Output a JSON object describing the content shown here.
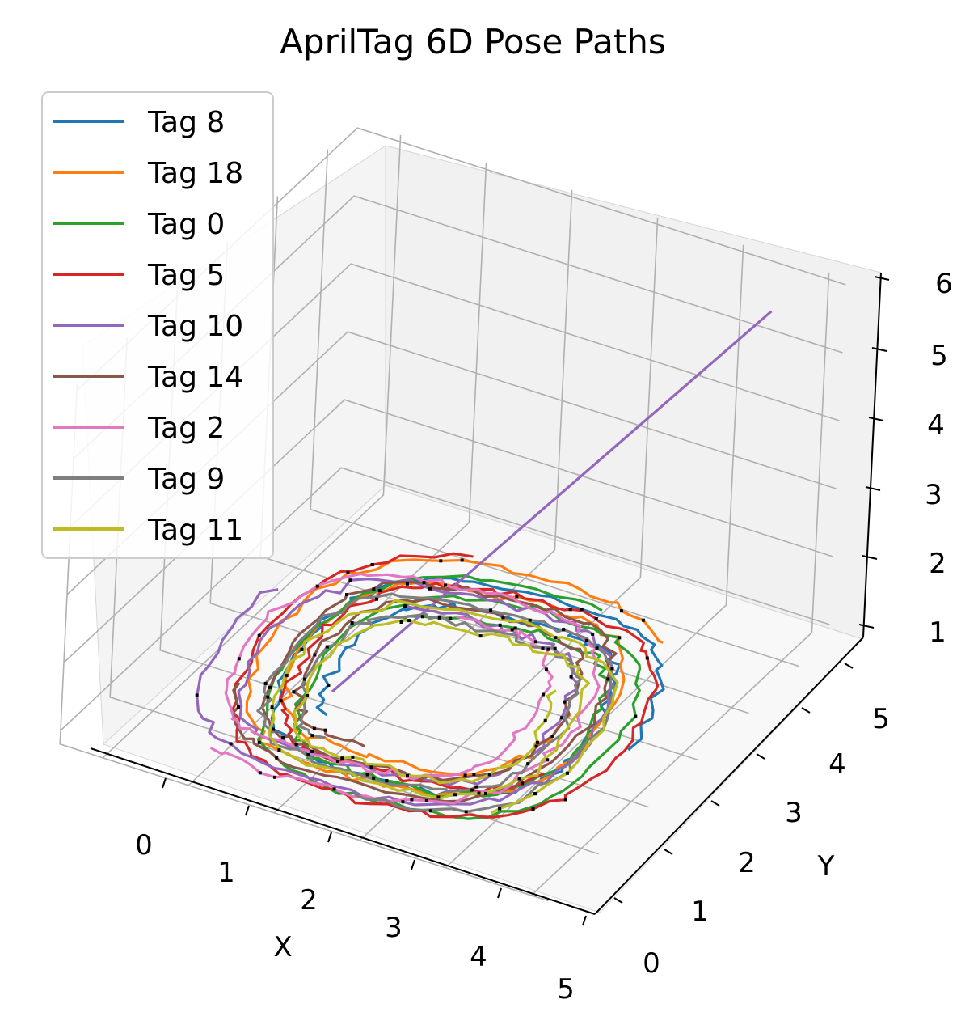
{
  "chart_data": {
    "type": "line",
    "projection": "3d",
    "title": "AprilTag 6D Pose Paths",
    "xlabel": "X",
    "ylabel": "Y",
    "zlabel": "",
    "xlim": [
      -0.5,
      5
    ],
    "ylim": [
      0,
      5.5
    ],
    "zlim": [
      0.8,
      6
    ],
    "x_ticks": [
      "0",
      "1",
      "2",
      "3",
      "4",
      "5"
    ],
    "y_ticks": [
      "0",
      "1",
      "2",
      "3",
      "4",
      "5"
    ],
    "z_ticks": [
      "1",
      "2",
      "3",
      "4",
      "5",
      "6"
    ],
    "grid": true,
    "legend_position": "upper-left",
    "legend": [
      "Tag 8",
      "Tag 18",
      "Tag 0",
      "Tag 5",
      "Tag 10",
      "Tag 14",
      "Tag 2",
      "Tag 9",
      "Tag 11"
    ],
    "series_note": "approximate loop paths; each series traces a closed loop around center (2.5, 2.5) at z near 1",
    "series": [
      {
        "name": "Tag 8",
        "color": "#1f77b4",
        "center": [
          2.6,
          2.6,
          1.0
        ],
        "radius": [
          2.0,
          2.3
        ]
      },
      {
        "name": "Tag 18",
        "color": "#ff7f0e",
        "center": [
          2.4,
          2.7,
          1.0
        ],
        "radius": [
          2.1,
          2.4
        ]
      },
      {
        "name": "Tag 0",
        "color": "#2ca02c",
        "center": [
          2.7,
          2.5,
          1.0
        ],
        "radius": [
          2.0,
          2.4
        ]
      },
      {
        "name": "Tag 5",
        "color": "#d62728",
        "center": [
          2.6,
          2.6,
          1.0
        ],
        "radius": [
          2.3,
          2.6
        ]
      },
      {
        "name": "Tag 10",
        "color": "#9467bd",
        "center": [
          2.2,
          2.5,
          1.0
        ],
        "radius": [
          2.2,
          2.3
        ],
        "extra_segment": [
          [
            1.5,
            2.0,
            1.0
          ],
          [
            4.8,
            4.8,
            6.0
          ]
        ]
      },
      {
        "name": "Tag 14",
        "color": "#8c564b",
        "center": [
          2.3,
          2.6,
          1.0
        ],
        "radius": [
          1.9,
          2.2
        ]
      },
      {
        "name": "Tag 2",
        "color": "#e377c2",
        "center": [
          2.0,
          2.5,
          1.0
        ],
        "radius": [
          2.1,
          2.3
        ]
      },
      {
        "name": "Tag 9",
        "color": "#7f7f7f",
        "center": [
          2.4,
          2.4,
          1.0
        ],
        "radius": [
          1.9,
          2.1
        ]
      },
      {
        "name": "Tag 11",
        "color": "#bcbd22",
        "center": [
          2.5,
          2.3,
          1.0
        ],
        "radius": [
          1.8,
          2.0
        ]
      }
    ]
  }
}
